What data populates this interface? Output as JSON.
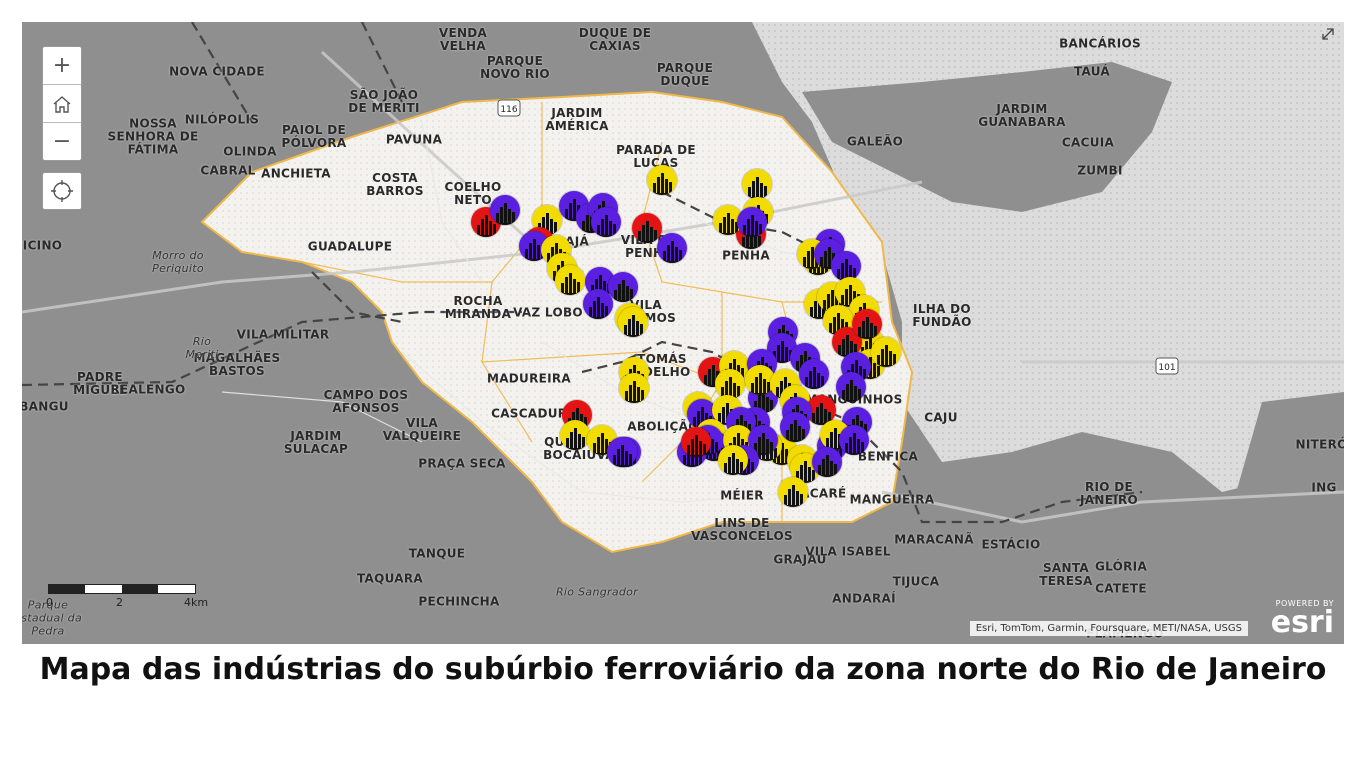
{
  "map": {
    "places": [
      {
        "label": "VENDA\nVELHA",
        "cls": ""
      },
      {
        "label": "DUQUE DE\nCAXIAS",
        "cls": ""
      },
      {
        "label": "PARQUE\nNOVO RIO",
        "cls": ""
      },
      {
        "label": "PARQUE\nDUQUE",
        "cls": ""
      },
      {
        "label": "BANCÁRIOS",
        "cls": ""
      },
      {
        "label": "TAUÁ",
        "cls": ""
      },
      {
        "label": "NOVA CIDADE",
        "cls": ""
      },
      {
        "label": "SÃO JOÃO\nDE MERITI",
        "cls": ""
      },
      {
        "label": "JARDIM\nAMÉRICA",
        "cls": ""
      },
      {
        "label": "JARDIM\nGUANABARA",
        "cls": ""
      },
      {
        "label": "NOSSA\nSENHORA DE\nFÁTIMA",
        "cls": ""
      },
      {
        "label": "NILÓPOLIS",
        "cls": ""
      },
      {
        "label": "PAIOL DE\nPÓLVORA",
        "cls": ""
      },
      {
        "label": "PAVUNA",
        "cls": ""
      },
      {
        "label": "GALEÃO",
        "cls": ""
      },
      {
        "label": "CACUIA",
        "cls": ""
      },
      {
        "label": "OLINDA",
        "cls": ""
      },
      {
        "label": "PARADA DE\nLUCAS",
        "cls": ""
      },
      {
        "label": "ZUMBI",
        "cls": ""
      },
      {
        "label": "CABRAL",
        "cls": ""
      },
      {
        "label": "ANCHIETA",
        "cls": ""
      },
      {
        "label": "COSTA\nBARROS",
        "cls": ""
      },
      {
        "label": "COELHO\nNETO",
        "cls": ""
      },
      {
        "label": "IRAJÁ",
        "cls": ""
      },
      {
        "label": "VILA DA\nPENHA",
        "cls": ""
      },
      {
        "label": "PENHA",
        "cls": ""
      },
      {
        "label": "GUADALUPE",
        "cls": ""
      },
      {
        "label": "Morro do\nPeriquito",
        "cls": "small"
      },
      {
        "label": "ROCHA\nMIRANDA",
        "cls": ""
      },
      {
        "label": "VAZ LOBO",
        "cls": ""
      },
      {
        "label": "VILA\nCOSMOS",
        "cls": ""
      },
      {
        "label": "ILHA DO\nFUNDÃO",
        "cls": ""
      },
      {
        "label": "VILA MILITAR",
        "cls": ""
      },
      {
        "label": "MAGALHÃES\nBASTOS",
        "cls": ""
      },
      {
        "label": "Rio\nMeriti",
        "cls": "small"
      },
      {
        "label": "TOMÁS\nCOELHO",
        "cls": ""
      },
      {
        "label": "MADUREIRA",
        "cls": ""
      },
      {
        "label": "PADRE\nMIGUEL",
        "cls": ""
      },
      {
        "label": "REALENGO",
        "cls": ""
      },
      {
        "label": "BANGU",
        "cls": ""
      },
      {
        "label": "CAMPO DOS\nAFONSOS",
        "cls": ""
      },
      {
        "label": "MANGUINHOS",
        "cls": ""
      },
      {
        "label": "CAJU",
        "cls": ""
      },
      {
        "label": "CASCADURA",
        "cls": ""
      },
      {
        "label": "VILA\nVALQUEIRE",
        "cls": ""
      },
      {
        "label": "ABOLIÇÃO",
        "cls": ""
      },
      {
        "label": "JARDIM\nSULACAP",
        "cls": ""
      },
      {
        "label": "QUINTINO\nBOCAIÚVA",
        "cls": ""
      },
      {
        "label": "BENFICA",
        "cls": ""
      },
      {
        "label": "PRAÇA SECA",
        "cls": ""
      },
      {
        "label": "NITERÓI",
        "cls": ""
      },
      {
        "label": "ING",
        "cls": ""
      },
      {
        "label": "MÉIER",
        "cls": ""
      },
      {
        "label": "JACARÉ",
        "cls": ""
      },
      {
        "label": "MANGUEIRA",
        "cls": ""
      },
      {
        "label": "RIO DE\nJANEIRO",
        "cls": ""
      },
      {
        "label": "LINS DE\nVASCONCELOS",
        "cls": ""
      },
      {
        "label": "MARACANÃ",
        "cls": ""
      },
      {
        "label": "ESTÁCIO",
        "cls": ""
      },
      {
        "label": "TANQUE",
        "cls": ""
      },
      {
        "label": "GRAJAÚ",
        "cls": ""
      },
      {
        "label": "VILA ISABEL",
        "cls": ""
      },
      {
        "label": "SANTA\nTERESA",
        "cls": ""
      },
      {
        "label": "GLÓRIA",
        "cls": ""
      },
      {
        "label": "CATETE",
        "cls": ""
      },
      {
        "label": "TAQUARA",
        "cls": ""
      },
      {
        "label": "TIJUCA",
        "cls": ""
      },
      {
        "label": "Rio Sangrador",
        "cls": "small"
      },
      {
        "label": "PECHINCHA",
        "cls": ""
      },
      {
        "label": "ANDARAÍ",
        "cls": ""
      },
      {
        "label": "Parque\nEstadual da\nPedra",
        "cls": "small"
      },
      {
        "label": "FLAMENGO",
        "cls": ""
      },
      {
        "label": "CICINO",
        "cls": ""
      }
    ],
    "shields": [
      "116",
      "101"
    ],
    "markers": [
      {
        "color": "red"
      },
      {
        "color": "purple"
      },
      {
        "color": "yellow"
      },
      {
        "color": "purple"
      },
      {
        "color": "purple"
      },
      {
        "color": "purple"
      },
      {
        "color": "purple"
      },
      {
        "color": "red"
      },
      {
        "color": "purple"
      },
      {
        "color": "yellow"
      },
      {
        "color": "yellow"
      },
      {
        "color": "purple"
      },
      {
        "color": "yellow"
      },
      {
        "color": "purple"
      },
      {
        "color": "purple"
      },
      {
        "color": "yellow"
      },
      {
        "color": "red"
      },
      {
        "color": "purple"
      },
      {
        "color": "red"
      },
      {
        "color": "yellow"
      },
      {
        "color": "yellow"
      },
      {
        "color": "yellow"
      },
      {
        "color": "purple"
      },
      {
        "color": "purple"
      },
      {
        "color": "yellow"
      },
      {
        "color": "yellow"
      },
      {
        "color": "purple"
      },
      {
        "color": "purple"
      },
      {
        "color": "yellow"
      },
      {
        "color": "yellow"
      },
      {
        "color": "yellow"
      },
      {
        "color": "yellow"
      },
      {
        "color": "yellow"
      },
      {
        "color": "yellow"
      },
      {
        "color": "red"
      },
      {
        "color": "yellow"
      },
      {
        "color": "yellow"
      },
      {
        "color": "red"
      },
      {
        "color": "yellow"
      },
      {
        "color": "yellow"
      },
      {
        "color": "red"
      },
      {
        "color": "yellow"
      },
      {
        "color": "yellow"
      },
      {
        "color": "purple"
      },
      {
        "color": "purple"
      },
      {
        "color": "yellow"
      },
      {
        "color": "purple"
      },
      {
        "color": "purple"
      },
      {
        "color": "yellow"
      },
      {
        "color": "purple"
      },
      {
        "color": "yellow"
      },
      {
        "color": "purple"
      },
      {
        "color": "yellow"
      },
      {
        "color": "purple"
      },
      {
        "color": "yellow"
      },
      {
        "color": "purple"
      },
      {
        "color": "yellow"
      },
      {
        "color": "purple"
      },
      {
        "color": "red"
      },
      {
        "color": "purple"
      },
      {
        "color": "yellow"
      },
      {
        "color": "purple"
      },
      {
        "color": "purple"
      },
      {
        "color": "yellow"
      },
      {
        "color": "purple"
      },
      {
        "color": "yellow"
      },
      {
        "color": "purple"
      },
      {
        "color": "yellow"
      },
      {
        "color": "purple"
      },
      {
        "color": "purple"
      },
      {
        "color": "purple"
      },
      {
        "color": "yellow"
      },
      {
        "color": "purple"
      },
      {
        "color": "purple"
      },
      {
        "color": "yellow"
      },
      {
        "color": "red"
      },
      {
        "color": "purple"
      },
      {
        "color": "yellow"
      },
      {
        "color": "purple"
      },
      {
        "color": "yellow"
      },
      {
        "color": "purple"
      },
      {
        "color": "red"
      },
      {
        "color": "purple"
      },
      {
        "color": "yellow"
      },
      {
        "color": "yellow"
      },
      {
        "color": "purple"
      },
      {
        "color": "yellow"
      },
      {
        "color": "purple"
      },
      {
        "color": "yellow"
      }
    ],
    "colors": {
      "yellow": "#f2dc00",
      "purple": "#5a1fe0",
      "red": "#e41414",
      "region_border": "#f0b84a",
      "water": "#d9d9d9",
      "land": "#8e8e8e"
    }
  },
  "controls": {
    "zoom_in": "+",
    "zoom_out": "−",
    "home_icon": "home-icon",
    "locate_icon": "locate-icon",
    "expand_icon": "expand-icon"
  },
  "scale": {
    "labels": [
      "0",
      "2",
      "4km"
    ]
  },
  "attribution": "Esri, TomTom, Garmin, Foursquare, METI/NASA, USGS",
  "esri": {
    "powered": "POWERED BY",
    "brand": "esri"
  },
  "caption": "Mapa das indústrias do subúrbio ferroviário da zona norte do Rio de Janeiro"
}
